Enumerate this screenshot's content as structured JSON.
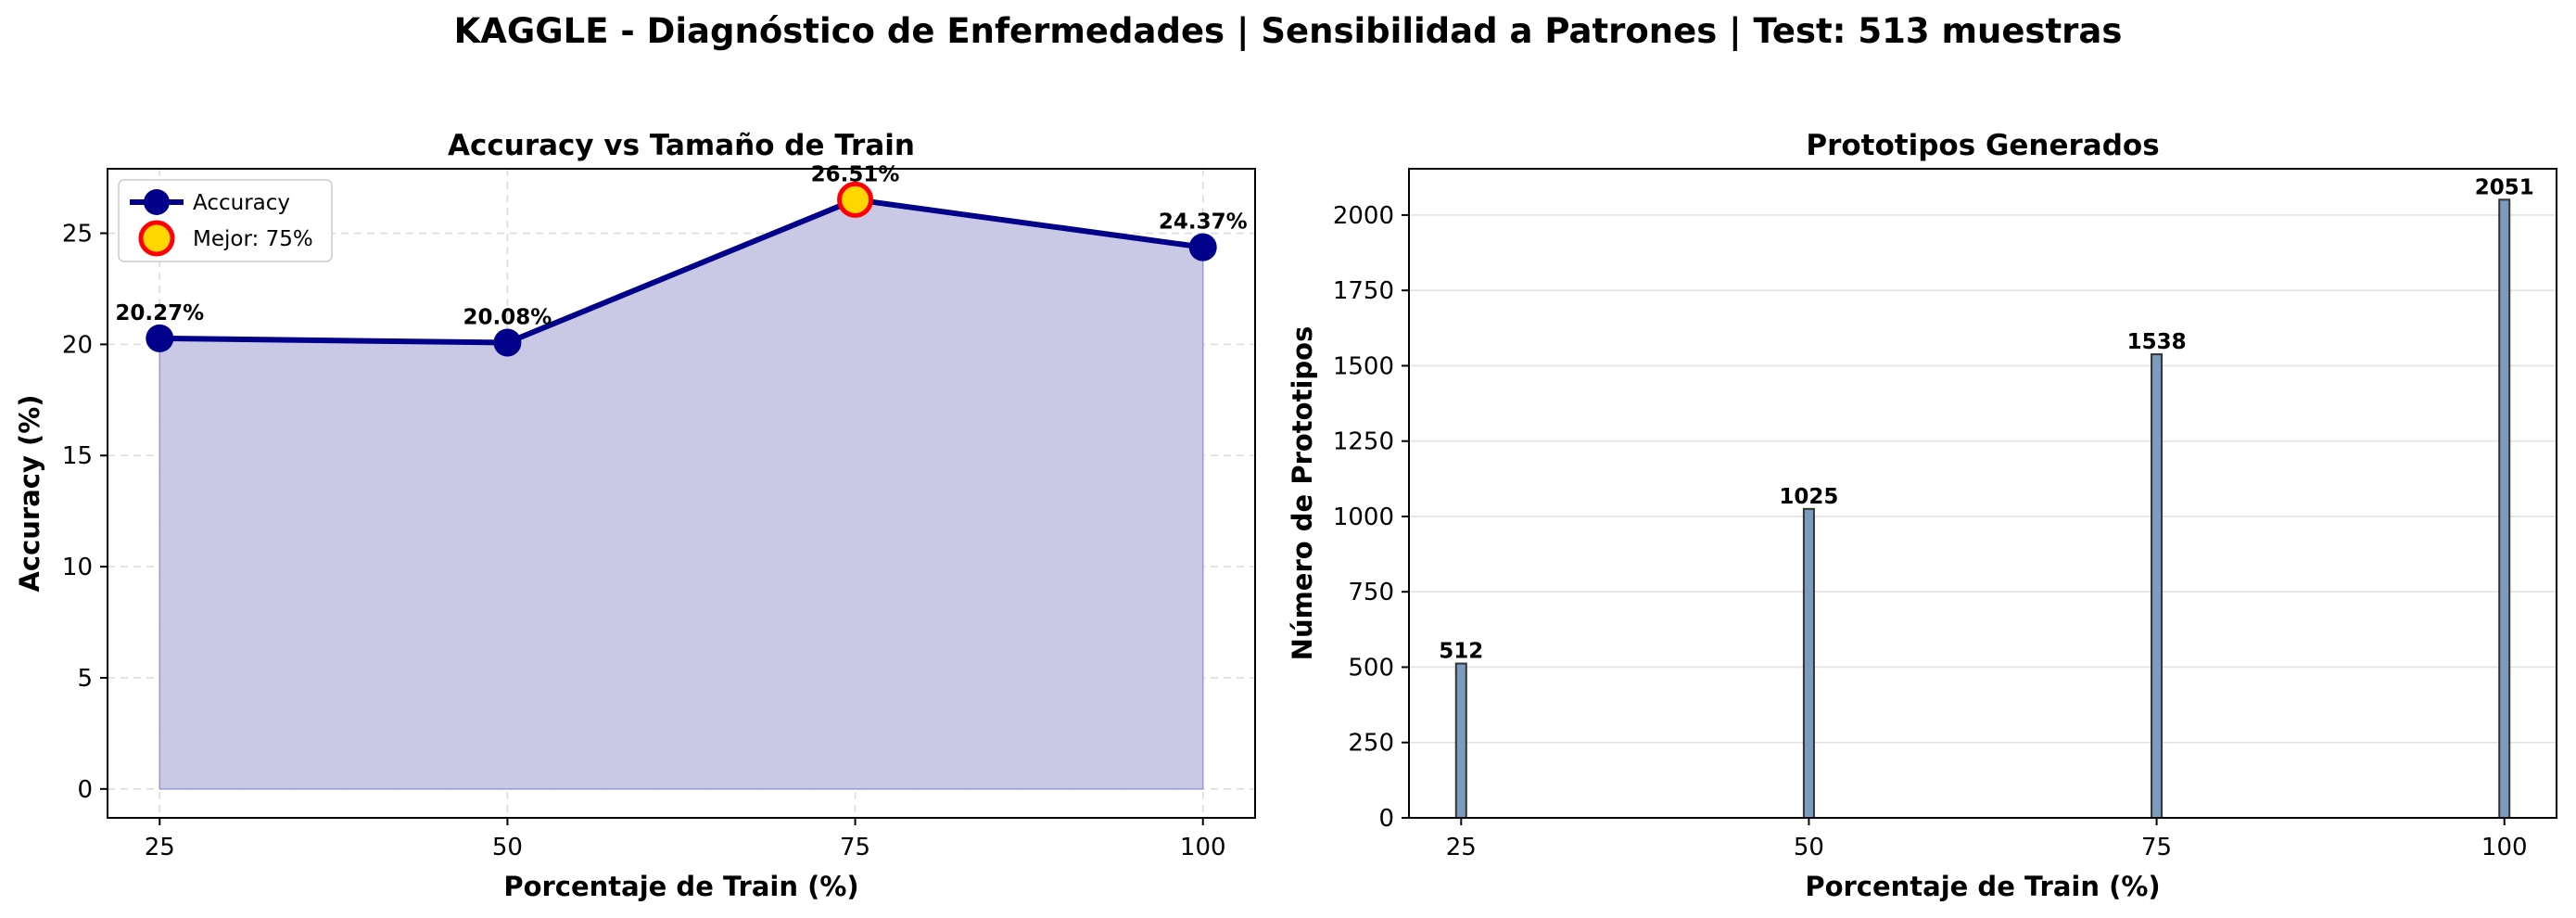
{
  "figure": {
    "suptitle": "KAGGLE - Diagnóstico de Enfermedades | Sensibilidad a Patrones | Test: 513 muestras"
  },
  "chart_data": [
    {
      "type": "area",
      "title": "Accuracy vs Tamaño de Train",
      "xlabel": "Porcentaje de Train (%)",
      "ylabel": "Accuracy (%)",
      "x": [
        25,
        50,
        75,
        100
      ],
      "xticks": [
        "25",
        "50",
        "75",
        "100"
      ],
      "yticks": [
        "0",
        "5",
        "10",
        "15",
        "20",
        "25"
      ],
      "ylim": [
        -1.3,
        27.9
      ],
      "xlim": [
        21.25,
        103.75
      ],
      "grid": true,
      "legend_position": "top-left",
      "series": [
        {
          "name": "Accuracy",
          "values": [
            20.27,
            20.08,
            26.51,
            24.37
          ],
          "color": "#00008B",
          "fill": "#c9c9e6"
        }
      ],
      "data_labels": [
        "20.27%",
        "20.08%",
        "26.51%",
        "24.37%"
      ],
      "highlight": {
        "name": "Mejor: 75%",
        "x": 75,
        "y": 26.51,
        "fill": "#FFD700",
        "edge": "#FF0000"
      }
    },
    {
      "type": "bar",
      "title": "Prototipos Generados",
      "xlabel": "Porcentaje de Train (%)",
      "ylabel": "Número de Prototipos",
      "x": [
        25,
        50,
        75,
        100
      ],
      "xticks": [
        "25",
        "50",
        "75",
        "100"
      ],
      "yticks": [
        "0",
        "250",
        "500",
        "750",
        "1000",
        "1250",
        "1500",
        "1750",
        "2000"
      ],
      "values": [
        512,
        1025,
        1538,
        2051
      ],
      "data_labels": [
        "512",
        "1025",
        "1538",
        "2051"
      ],
      "ylim": [
        0,
        2153.55
      ],
      "xlim": [
        21.25,
        103.75
      ],
      "grid": true,
      "bar_color": "#7a9cbf",
      "bar_edge": "#333333"
    }
  ]
}
